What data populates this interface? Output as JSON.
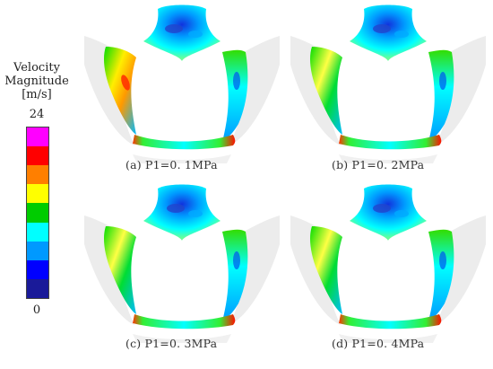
{
  "legend": {
    "title_lines": [
      "Velocity",
      "Magnitude",
      "[m/s]"
    ],
    "max": "24",
    "min": "0",
    "band_colors": [
      "#ff00ff",
      "#ff0000",
      "#ff7f00",
      "#ffff00",
      "#00cc00",
      "#00ffff",
      "#0099ff",
      "#0000ff",
      "#1a1a99"
    ]
  },
  "panels": [
    {
      "caption": "(a) P1=0. 1MPa"
    },
    {
      "caption": "(b) P1=0. 2MPa"
    },
    {
      "caption": "(c) P1=0. 3MPa"
    },
    {
      "caption": "(d) P1=0. 4MPa"
    }
  ]
}
